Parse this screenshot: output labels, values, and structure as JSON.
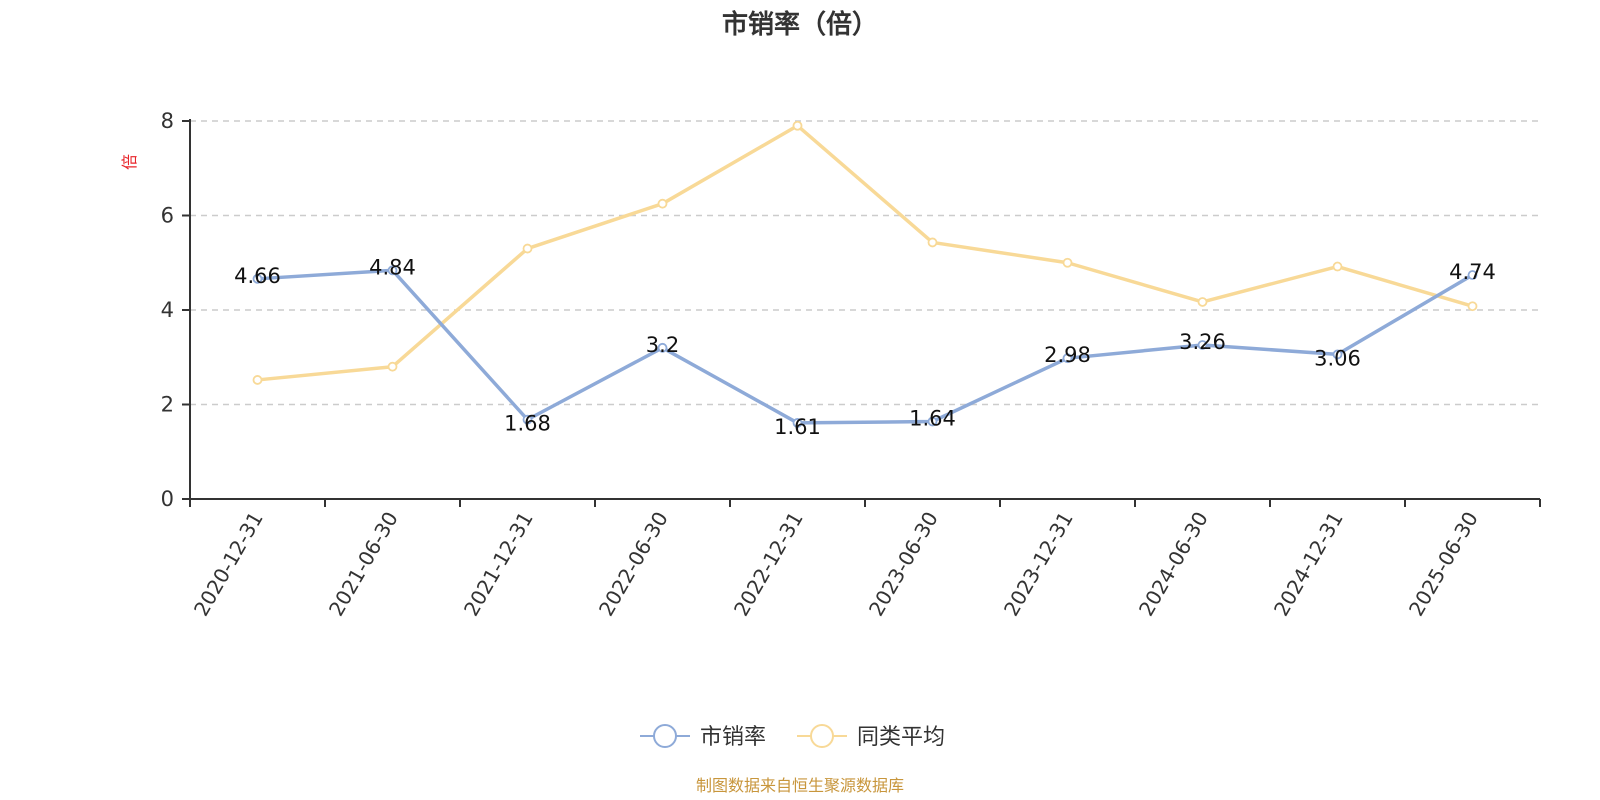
{
  "chart_data": {
    "type": "line",
    "title": "市销率（倍）",
    "unit_label": "倍",
    "categories": [
      "2020-12-31",
      "2021-06-30",
      "2021-12-31",
      "2022-06-30",
      "2022-12-31",
      "2023-06-30",
      "2023-12-31",
      "2024-06-30",
      "2024-12-31",
      "2025-06-30"
    ],
    "ylim": [
      0,
      8
    ],
    "yticks": [
      0,
      2,
      4,
      6,
      8
    ],
    "grid": true,
    "legend_position": "bottom",
    "series": [
      {
        "name": "市销率",
        "color": "#8eaad8",
        "values": [
          4.66,
          4.84,
          1.68,
          3.2,
          1.61,
          1.64,
          2.98,
          3.26,
          3.06,
          4.74
        ],
        "labels": [
          "4.66",
          "4.84",
          "1.68",
          "3.2",
          "1.61",
          "1.64",
          "2.98",
          "3.26",
          "3.06",
          "4.74"
        ]
      },
      {
        "name": "同类平均",
        "color": "#f8d997",
        "values": [
          2.52,
          2.8,
          5.3,
          6.25,
          7.9,
          5.43,
          5.0,
          4.17,
          4.92,
          4.08
        ]
      }
    ],
    "source": "制图数据来自恒生聚源数据库"
  }
}
